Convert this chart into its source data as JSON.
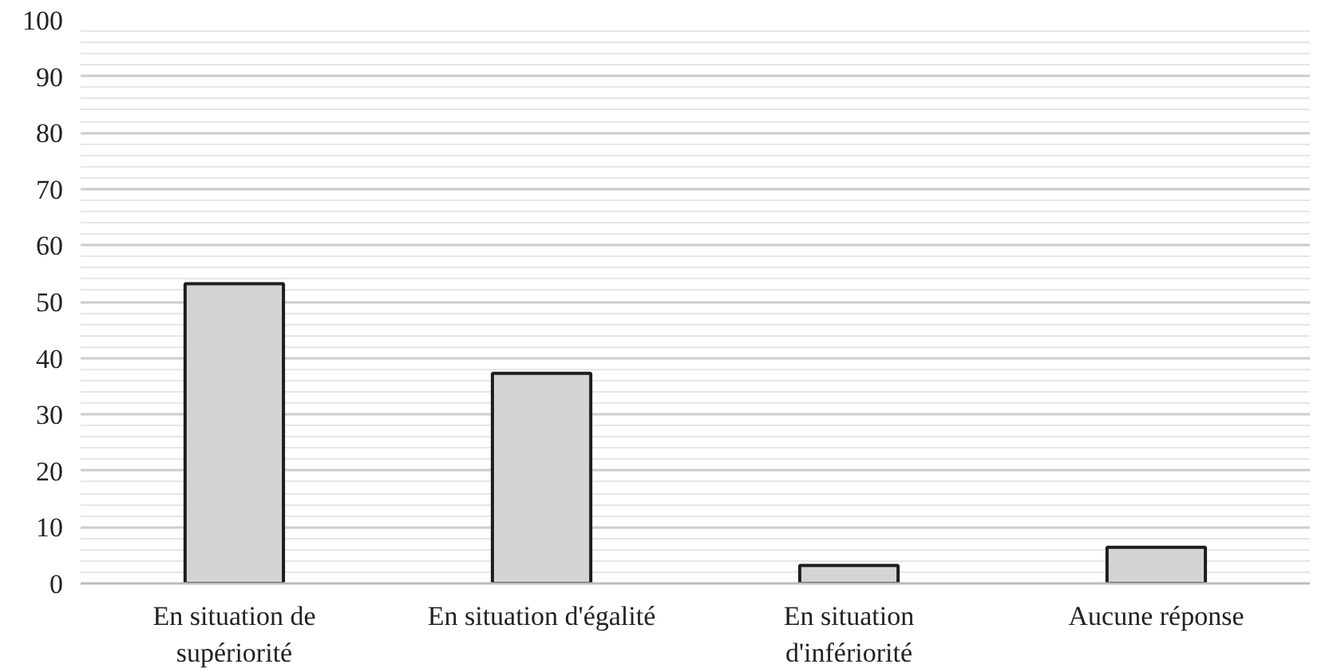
{
  "chart_data": {
    "type": "bar",
    "categories": [
      "En situation de supériorité",
      "En situation d'égalité",
      "En situation d'infériorité",
      "Aucune réponse"
    ],
    "values": [
      53.2,
      37.3,
      3.2,
      6.4
    ],
    "color": "#d4d4d6",
    "ylim": [
      0,
      100
    ],
    "yticks": [
      0,
      10,
      20,
      30,
      40,
      50,
      60,
      70,
      80,
      90,
      100
    ],
    "grid": "y"
  }
}
